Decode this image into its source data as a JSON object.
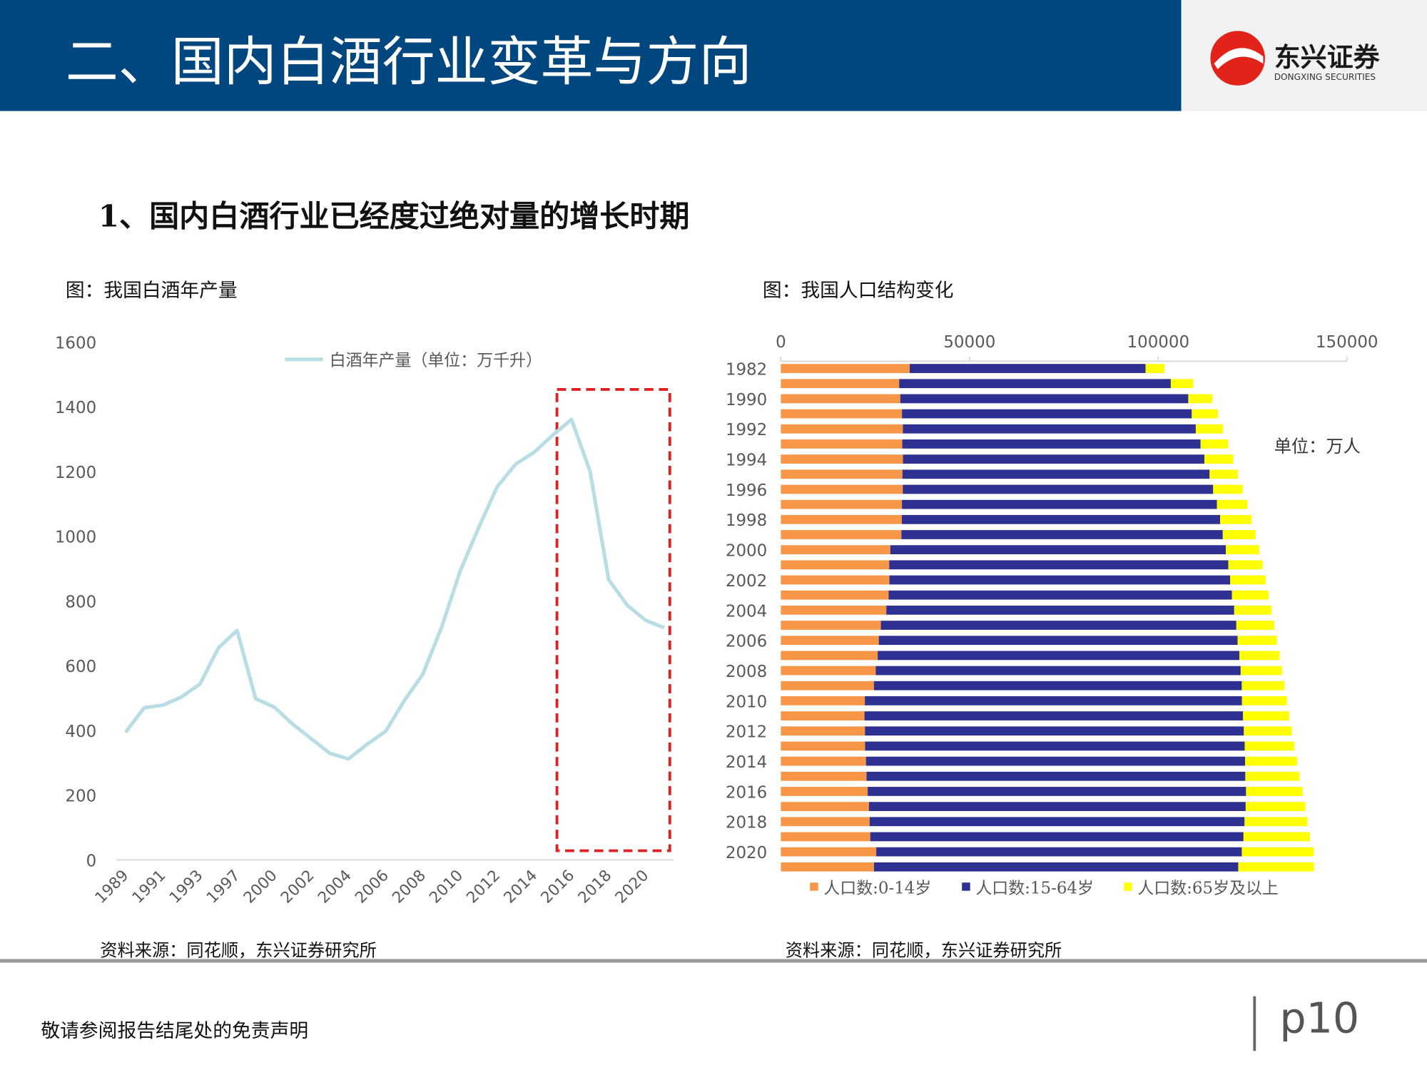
{
  "header": {
    "title": "二、国内白酒行业变革与方向",
    "logo_cn": "东兴证券",
    "logo_en": "DONGXING SECURITIES"
  },
  "section_title": "1、国内白酒行业已经度过绝对量的增长时期",
  "chart_data": [
    {
      "type": "line",
      "title": "图：我国白酒年产量",
      "categories": [
        "1989",
        null,
        "1991",
        null,
        "1993",
        null,
        "1997",
        null,
        "2000",
        null,
        "2002",
        null,
        "2004",
        null,
        "2006",
        null,
        "2008",
        null,
        "2010",
        null,
        "2012",
        null,
        "2014",
        null,
        "2016",
        null,
        "2018",
        null,
        "2020",
        null
      ],
      "series": [
        {
          "name": "白酒年产量（单位：万千升）",
          "color": "#b9dde4",
          "values": [
            394,
            470,
            478,
            503,
            543,
            655,
            709,
            498,
            472,
            419,
            374,
            329,
            312,
            357,
            397,
            492,
            574,
            717,
            891,
            1026,
            1153,
            1223,
            1260,
            1313,
            1361,
            1201,
            866,
            787,
            740,
            717
          ]
        }
      ],
      "ylim": [
        0,
        1600
      ],
      "yticks": [
        0,
        200,
        400,
        600,
        800,
        1000,
        1200,
        1400,
        1600
      ],
      "legend": "top",
      "grid": false,
      "source": "资料来源：同花顺，东兴证券研究所"
    },
    {
      "type": "bar",
      "orientation": "horizontal",
      "stacked": true,
      "title": "图：我国人口结构变化",
      "categories": [
        "1982",
        null,
        "1990",
        null,
        "1992",
        null,
        "1994",
        null,
        "1996",
        null,
        "1998",
        null,
        "2000",
        null,
        "2002",
        null,
        "2004",
        null,
        "2006",
        null,
        "2008",
        null,
        "2010",
        null,
        "2012",
        null,
        "2014",
        null,
        "2016",
        null,
        "2018",
        null,
        "2020",
        null
      ],
      "series": [
        {
          "name": "人口数:0-14岁",
          "color": "#f79646",
          "values": [
            34146,
            31347,
            31659,
            32095,
            32339,
            32177,
            32360,
            32218,
            32311,
            32093,
            32064,
            31950,
            29012,
            28716,
            28774,
            28559,
            27947,
            26504,
            25961,
            25660,
            25166,
            24659,
            22259,
            22164,
            22287,
            22329,
            22558,
            22715,
            23008,
            23348,
            23523,
            23689,
            25277,
            24678
          ]
        },
        {
          "name": "人口数:15-64岁",
          "color": "#2e3192",
          "values": [
            62517,
            71985,
            76306,
            76791,
            77614,
            79051,
            79868,
            81393,
            82245,
            83448,
            84338,
            85157,
            88910,
            89849,
            90302,
            90976,
            92184,
            94197,
            95068,
            95833,
            96680,
            97484,
            99938,
            100283,
            100403,
            100582,
            100469,
            100361,
            100260,
            99829,
            99357,
            98910,
            96871,
            96526
          ]
        },
        {
          "name": "人口数:65岁及以上",
          "color": "#ffff00",
          "values": [
            4991,
            5968,
            6368,
            6938,
            7218,
            7289,
            7622,
            7510,
            7833,
            8085,
            8359,
            8679,
            8821,
            9062,
            9377,
            9692,
            9857,
            10055,
            10419,
            10636,
            10956,
            11307,
            11894,
            12288,
            12714,
            13161,
            13755,
            14386,
            15003,
            15831,
            16658,
            17603,
            19064,
            20056
          ]
        }
      ],
      "xlim": [
        0,
        150000
      ],
      "xticks": [
        0,
        50000,
        100000,
        150000
      ],
      "annotation": "单位：万人",
      "legend": "bottom",
      "source": "资料来源：同花顺，东兴证券研究所"
    }
  ],
  "footer": {
    "disclaimer": "敬请参阅报告结尾处的免责声明",
    "page": "p10"
  }
}
